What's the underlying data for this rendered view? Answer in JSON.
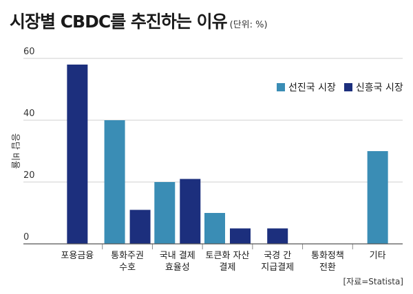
{
  "title": "시장별 CBDC를 추진하는 이유",
  "unit": "(단위: %)",
  "source": "[자료=Statista]",
  "colors": {
    "developed": "#3a8db5",
    "emerging": "#1c2f7d"
  },
  "chart_data": {
    "type": "bar",
    "title": "시장별 CBDC를 추진하는 이유",
    "ylabel": "응답 비율",
    "xlabel": "",
    "ylim": [
      0,
      60
    ],
    "yticks": [
      0,
      20,
      40,
      60
    ],
    "grid": true,
    "legend_position": "top-right",
    "categories": [
      [
        "포용금융"
      ],
      [
        "통화주권",
        "수호"
      ],
      [
        "국내 결제",
        "효율성"
      ],
      [
        "토큰화 자산",
        "결제"
      ],
      [
        "국경 간",
        "지급결제"
      ],
      [
        "통화정책",
        "전환"
      ],
      [
        "기타"
      ]
    ],
    "series": [
      {
        "name": "선진국 시장",
        "color": "#3a8db5",
        "values": [
          null,
          40,
          20,
          10,
          null,
          null,
          30
        ]
      },
      {
        "name": "신흥국 시장",
        "color": "#1c2f7d",
        "values": [
          58,
          11,
          21,
          5,
          5,
          null,
          null
        ]
      }
    ]
  }
}
